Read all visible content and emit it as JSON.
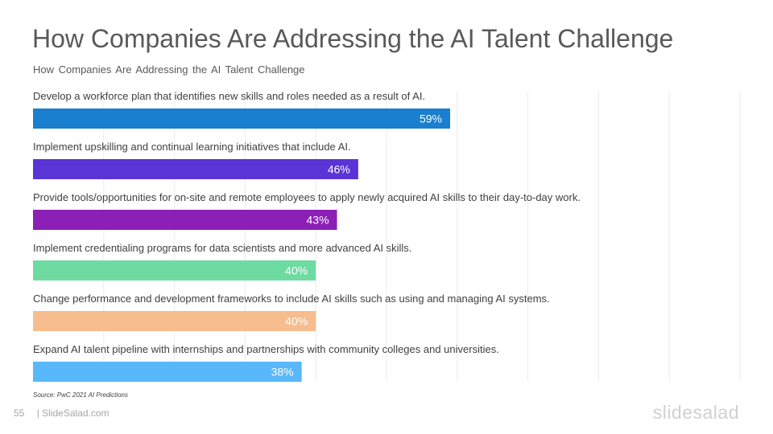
{
  "slide": {
    "title": "How Companies Are Addressing the AI Talent Challenge",
    "subtitle": "How Companies  Are  Addressing  the  AI Talent Challenge",
    "source": "Source: PwC 2021 AI Predictions",
    "page_number": "55",
    "footer_text": "| SlideSalad.com",
    "logo_text": "slidesalad"
  },
  "chart_data": {
    "type": "bar",
    "orientation": "horizontal",
    "categories": [
      "Develop a workforce plan that identifies new skills and roles needed as a result of AI.",
      "Implement upskilling and continual learning initiatives that include AI.",
      "Provide tools/opportunities for on-site and remote employees to apply newly acquired AI skills to their day-to-day work.",
      "Implement credentialing programs for data scientists and more advanced AI skills.",
      "Change performance and development frameworks to include AI skills such as using and managing AI systems.",
      "Expand AI talent pipeline with internships and partnerships with community colleges and universities."
    ],
    "values": [
      59,
      46,
      43,
      40,
      40,
      38
    ],
    "data_labels": [
      "59%",
      "46%",
      "43%",
      "40%",
      "40%",
      "38%"
    ],
    "colors": [
      "#1a7fce",
      "#5a34d6",
      "#8c1fb5",
      "#6edba2",
      "#f7bd8e",
      "#58b8fa"
    ],
    "xlim": [
      0,
      100
    ],
    "grid": "vertical",
    "legend": "none"
  }
}
